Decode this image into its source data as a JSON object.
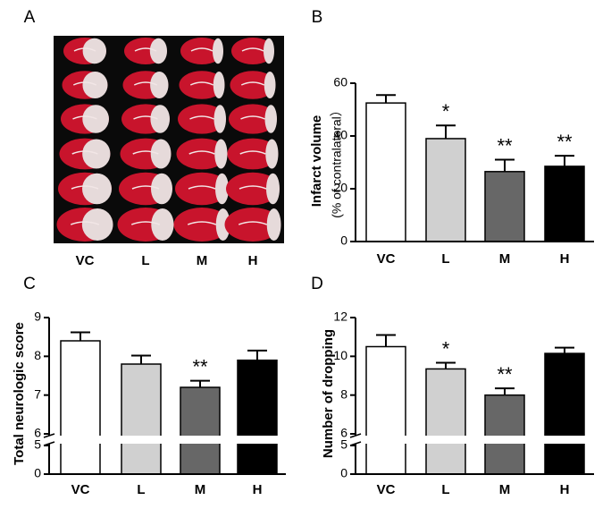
{
  "chart_data": [
    {
      "type": "image",
      "panel_label": "A",
      "categories": [
        "VC",
        "L",
        "M",
        "H"
      ]
    },
    {
      "type": "bar",
      "panel_label": "B",
      "ylabel": "Infarct volume",
      "ylabel2": "(% of contralateral）",
      "categories": [
        "VC",
        "L",
        "M",
        "H"
      ],
      "values": [
        52.5,
        39,
        26.5,
        28.5
      ],
      "errors": [
        3,
        5,
        4.5,
        4
      ],
      "colors": [
        "#ffffff",
        "#d0d0d0",
        "#676767",
        "#000000"
      ],
      "annotations": [
        null,
        "*",
        "**",
        "**"
      ],
      "ylim": [
        0,
        60
      ],
      "yticks": [
        0,
        20,
        40,
        60
      ]
    },
    {
      "type": "bar",
      "panel_label": "C",
      "ylabel": "Total neurologic score",
      "categories": [
        "VC",
        "L",
        "M",
        "H"
      ],
      "values": [
        8.4,
        7.8,
        7.2,
        7.9
      ],
      "errors": [
        0.22,
        0.22,
        0.17,
        0.25
      ],
      "colors": [
        "#ffffff",
        "#d0d0d0",
        "#676767",
        "#000000"
      ],
      "annotations": [
        null,
        null,
        "**",
        null
      ],
      "ylim": [
        6,
        9
      ],
      "yticks": [
        6,
        7,
        8,
        9
      ],
      "ylim_lower": [
        0,
        5
      ],
      "yticks_lower": [
        0,
        5
      ]
    },
    {
      "type": "bar",
      "panel_label": "D",
      "ylabel": "Number of  dropping",
      "categories": [
        "VC",
        "L",
        "M",
        "H"
      ],
      "values": [
        10.5,
        9.35,
        8.0,
        10.15
      ],
      "errors": [
        0.6,
        0.32,
        0.35,
        0.3
      ],
      "colors": [
        "#ffffff",
        "#d0d0d0",
        "#676767",
        "#000000"
      ],
      "annotations": [
        null,
        "*",
        "**",
        null
      ],
      "ylim": [
        6,
        12
      ],
      "yticks": [
        6,
        8,
        10,
        12
      ],
      "ylim_lower": [
        0,
        5
      ],
      "yticks_lower": [
        0,
        5
      ]
    }
  ]
}
